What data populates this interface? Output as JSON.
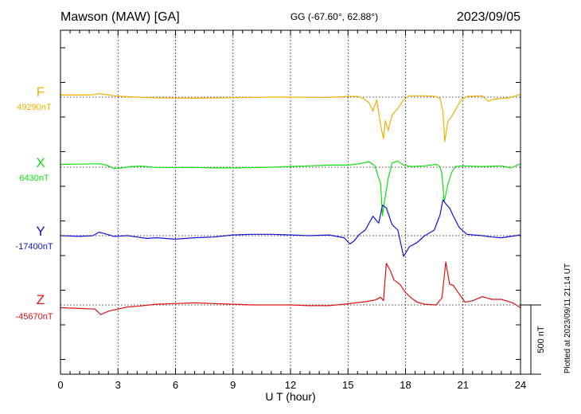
{
  "header": {
    "station": "Mawson (MAW)  [GA]",
    "coords": "GG (-67.60°,  62.88°)",
    "date": "2023/09/05"
  },
  "footer": {
    "plotted": "Plotted at 2023/09/11 21:14 UT"
  },
  "chart_data": {
    "type": "line",
    "xlabel": "U T (hour)",
    "xlim": [
      0,
      24
    ],
    "xticks": [
      0,
      3,
      6,
      9,
      12,
      15,
      18,
      21,
      24
    ],
    "grid": true,
    "scale_bar": {
      "label": "500 nT",
      "value_nT": 500
    },
    "colors": {
      "F": "#f0b000",
      "X": "#10e010",
      "Y": "#1010d0",
      "Z": "#e01010"
    },
    "series": [
      {
        "name": "F",
        "baseline_label": "49290nT",
        "baseline_nT": 49290,
        "points": [
          [
            0,
            15
          ],
          [
            1,
            15
          ],
          [
            1.7,
            17
          ],
          [
            2,
            25
          ],
          [
            2.3,
            20
          ],
          [
            2.8,
            10
          ],
          [
            3.2,
            5
          ],
          [
            4,
            0
          ],
          [
            5,
            -5
          ],
          [
            6,
            -7
          ],
          [
            7,
            -8
          ],
          [
            8,
            -6
          ],
          [
            9,
            -4
          ],
          [
            10,
            -2
          ],
          [
            11,
            0
          ],
          [
            12,
            0
          ],
          [
            13,
            -2
          ],
          [
            14,
            -2
          ],
          [
            15,
            5
          ],
          [
            15.5,
            5
          ],
          [
            15.8,
            -10
          ],
          [
            16.1,
            -40
          ],
          [
            16.3,
            -100
          ],
          [
            16.5,
            -20
          ],
          [
            16.7,
            -200
          ],
          [
            16.85,
            -300
          ],
          [
            16.95,
            -170
          ],
          [
            17.1,
            -240
          ],
          [
            17.3,
            -130
          ],
          [
            17.6,
            -80
          ],
          [
            17.9,
            -20
          ],
          [
            18.2,
            10
          ],
          [
            19,
            10
          ],
          [
            19.6,
            5
          ],
          [
            19.8,
            -10
          ],
          [
            19.95,
            -100
          ],
          [
            20.05,
            -320
          ],
          [
            20.2,
            -180
          ],
          [
            20.4,
            -140
          ],
          [
            20.7,
            -70
          ],
          [
            20.9,
            -20
          ],
          [
            21.2,
            5
          ],
          [
            22,
            10
          ],
          [
            22.3,
            -30
          ],
          [
            22.6,
            -15
          ],
          [
            23,
            -10
          ],
          [
            23.4,
            -5
          ],
          [
            24,
            20
          ]
        ]
      },
      {
        "name": "X",
        "baseline_label": "6430nT",
        "baseline_nT": 6430,
        "points": [
          [
            0,
            20
          ],
          [
            1,
            22
          ],
          [
            2,
            25
          ],
          [
            2.4,
            15
          ],
          [
            2.8,
            -10
          ],
          [
            3.2,
            -5
          ],
          [
            3.7,
            5
          ],
          [
            4.2,
            8
          ],
          [
            5,
            -2
          ],
          [
            6,
            -3
          ],
          [
            7,
            -2
          ],
          [
            8,
            -5
          ],
          [
            9,
            -5
          ],
          [
            10,
            -3
          ],
          [
            11,
            0
          ],
          [
            12,
            5
          ],
          [
            13,
            10
          ],
          [
            14,
            15
          ],
          [
            15,
            15
          ],
          [
            15.6,
            25
          ],
          [
            16.1,
            40
          ],
          [
            16.4,
            10
          ],
          [
            16.7,
            -120
          ],
          [
            16.8,
            -350
          ],
          [
            16.9,
            -250
          ],
          [
            17.1,
            -80
          ],
          [
            17.3,
            30
          ],
          [
            17.6,
            45
          ],
          [
            17.9,
            15
          ],
          [
            18.3,
            5
          ],
          [
            19,
            10
          ],
          [
            19.6,
            20
          ],
          [
            19.8,
            5
          ],
          [
            19.9,
            -50
          ],
          [
            20.02,
            -250
          ],
          [
            20.2,
            -130
          ],
          [
            20.4,
            -40
          ],
          [
            20.6,
            5
          ],
          [
            21,
            10
          ],
          [
            22,
            5
          ],
          [
            23,
            10
          ],
          [
            23.5,
            -5
          ],
          [
            24,
            25
          ]
        ]
      },
      {
        "name": "Y",
        "baseline_label": "-17400nT",
        "baseline_nT": -17400,
        "points": [
          [
            0,
            0
          ],
          [
            1,
            -5
          ],
          [
            1.7,
            0
          ],
          [
            2,
            25
          ],
          [
            2.3,
            15
          ],
          [
            2.8,
            -5
          ],
          [
            3.5,
            0
          ],
          [
            4,
            -10
          ],
          [
            4.5,
            -20
          ],
          [
            5,
            -15
          ],
          [
            6,
            -25
          ],
          [
            7,
            -15
          ],
          [
            8,
            -10
          ],
          [
            9,
            5
          ],
          [
            10,
            10
          ],
          [
            11,
            10
          ],
          [
            12,
            5
          ],
          [
            13,
            0
          ],
          [
            14,
            5
          ],
          [
            14.8,
            -15
          ],
          [
            15.1,
            -60
          ],
          [
            15.3,
            -40
          ],
          [
            15.6,
            10
          ],
          [
            15.9,
            40
          ],
          [
            16.1,
            90
          ],
          [
            16.3,
            140
          ],
          [
            16.6,
            90
          ],
          [
            16.8,
            220
          ],
          [
            17,
            200
          ],
          [
            17.3,
            80
          ],
          [
            17.6,
            40
          ],
          [
            17.9,
            -150
          ],
          [
            18.2,
            -80
          ],
          [
            18.6,
            -50
          ],
          [
            19,
            0
          ],
          [
            19.5,
            40
          ],
          [
            19.8,
            150
          ],
          [
            19.95,
            260
          ],
          [
            20.1,
            230
          ],
          [
            20.3,
            200
          ],
          [
            20.5,
            140
          ],
          [
            20.8,
            60
          ],
          [
            21.2,
            10
          ],
          [
            22,
            0
          ],
          [
            22.5,
            -10
          ],
          [
            23,
            -15
          ],
          [
            24,
            5
          ]
        ]
      },
      {
        "name": "Z",
        "baseline_label": "-45670nT",
        "baseline_nT": -45670,
        "points": [
          [
            0,
            -20
          ],
          [
            1,
            -25
          ],
          [
            1.8,
            -30
          ],
          [
            2.1,
            -70
          ],
          [
            2.5,
            -45
          ],
          [
            3,
            -30
          ],
          [
            3.5,
            -15
          ],
          [
            4,
            -10
          ],
          [
            5,
            5
          ],
          [
            6,
            10
          ],
          [
            7,
            15
          ],
          [
            8,
            10
          ],
          [
            9,
            5
          ],
          [
            10,
            0
          ],
          [
            11,
            0
          ],
          [
            12,
            0
          ],
          [
            13,
            -5
          ],
          [
            14,
            -5
          ],
          [
            14.8,
            5
          ],
          [
            15.4,
            15
          ],
          [
            16,
            25
          ],
          [
            16.4,
            35
          ],
          [
            16.7,
            55
          ],
          [
            16.85,
            30
          ],
          [
            17,
            300
          ],
          [
            17.2,
            250
          ],
          [
            17.4,
            180
          ],
          [
            17.7,
            150
          ],
          [
            18,
            90
          ],
          [
            18.3,
            50
          ],
          [
            18.6,
            20
          ],
          [
            19,
            5
          ],
          [
            19.6,
            0
          ],
          [
            19.9,
            50
          ],
          [
            20.1,
            310
          ],
          [
            20.3,
            150
          ],
          [
            20.5,
            140
          ],
          [
            20.8,
            80
          ],
          [
            21.1,
            20
          ],
          [
            21.5,
            30
          ],
          [
            22,
            60
          ],
          [
            22.5,
            40
          ],
          [
            23,
            40
          ],
          [
            23.6,
            15
          ],
          [
            24,
            -20
          ]
        ]
      }
    ]
  }
}
